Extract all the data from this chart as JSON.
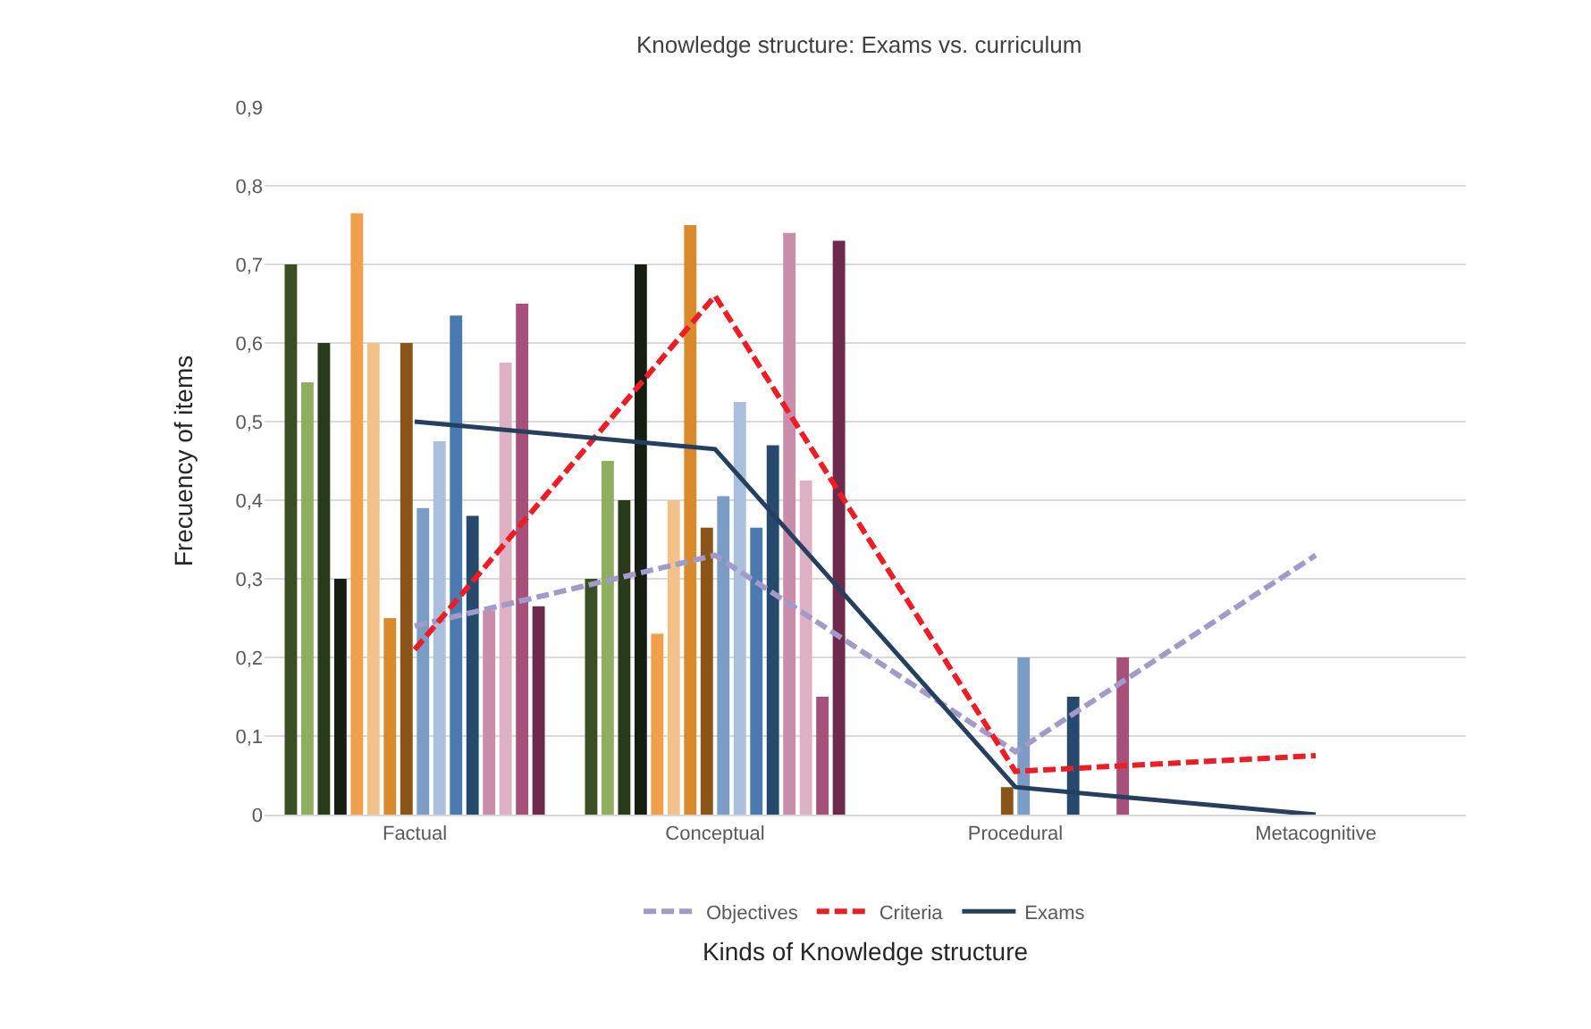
{
  "chart_data": {
    "type": "bar",
    "title": "Knowledge structure: Exams vs. curriculum",
    "xlabel": "Kinds of Knowledge structure",
    "ylabel": "Frecuency of items",
    "categories": [
      "Factual",
      "Conceptual",
      "Procedural",
      "Metacognitive"
    ],
    "series": [
      {
        "color": "#3a4f24",
        "values": [
          0.7,
          0.3,
          null,
          null
        ]
      },
      {
        "color": "#8fae5f",
        "values": [
          0.55,
          0.45,
          null,
          null
        ]
      },
      {
        "color": "#2c3a1c",
        "values": [
          0.6,
          0.4,
          null,
          null
        ]
      },
      {
        "color": "#161d12",
        "values": [
          0.3,
          0.7,
          null,
          null
        ]
      },
      {
        "color": "#f0a04a",
        "values": [
          0.765,
          0.23,
          null,
          null
        ]
      },
      {
        "color": "#f5c18a",
        "values": [
          0.6,
          0.4,
          null,
          null
        ]
      },
      {
        "color": "#d98a2c",
        "values": [
          0.25,
          0.75,
          null,
          null
        ]
      },
      {
        "color": "#8a5418",
        "values": [
          0.6,
          0.365,
          0.035,
          null
        ]
      },
      {
        "color": "#7b9cc4",
        "values": [
          0.39,
          0.405,
          0.2,
          null
        ]
      },
      {
        "color": "#a9bfdc",
        "values": [
          0.475,
          0.525,
          null,
          null
        ]
      },
      {
        "color": "#4a7ab0",
        "values": [
          0.635,
          0.365,
          null,
          null
        ]
      },
      {
        "color": "#264a6e",
        "values": [
          0.38,
          0.47,
          0.15,
          null
        ]
      },
      {
        "color": "#c98faa",
        "values": [
          0.26,
          0.74,
          null,
          null
        ]
      },
      {
        "color": "#ddb0c4",
        "values": [
          0.575,
          0.425,
          null,
          null
        ]
      },
      {
        "color": "#a8507a",
        "values": [
          0.65,
          0.15,
          0.2,
          null
        ]
      },
      {
        "color": "#6e2a4a",
        "values": [
          0.265,
          0.73,
          null,
          null
        ]
      },
      {
        "type": "line",
        "name": "Objectives",
        "color": "#a29bc9",
        "line_style": "dashed",
        "values": [
          0.24,
          0.33,
          0.08,
          0.33
        ]
      },
      {
        "type": "line",
        "name": "Criteria",
        "color": "#ee1c24",
        "line_style": "dashed",
        "values": [
          0.21,
          0.66,
          0.055,
          0.075
        ]
      },
      {
        "type": "line",
        "name": "Exams",
        "color": "#25405f",
        "line_style": "solid",
        "values": [
          0.5,
          0.465,
          0.035,
          0
        ]
      }
    ],
    "ylim": [
      0,
      0.9
    ],
    "yticks": [
      0,
      {
        "value": 0.1,
        "label": "0,1"
      },
      {
        "value": 0.2,
        "label": "0,2"
      },
      {
        "value": 0.3,
        "label": "0,3"
      },
      {
        "value": 0.4,
        "label": "0,4"
      },
      {
        "value": 0.5,
        "label": "0,5"
      },
      {
        "value": 0.6,
        "label": "0,6"
      },
      {
        "value": 0.7,
        "label": "0,7"
      },
      {
        "value": 0.8,
        "label": "0,8"
      },
      {
        "value": 0.9,
        "label": "0,9"
      }
    ],
    "grid": "y",
    "legend": "bottom",
    "marker": "none"
  }
}
